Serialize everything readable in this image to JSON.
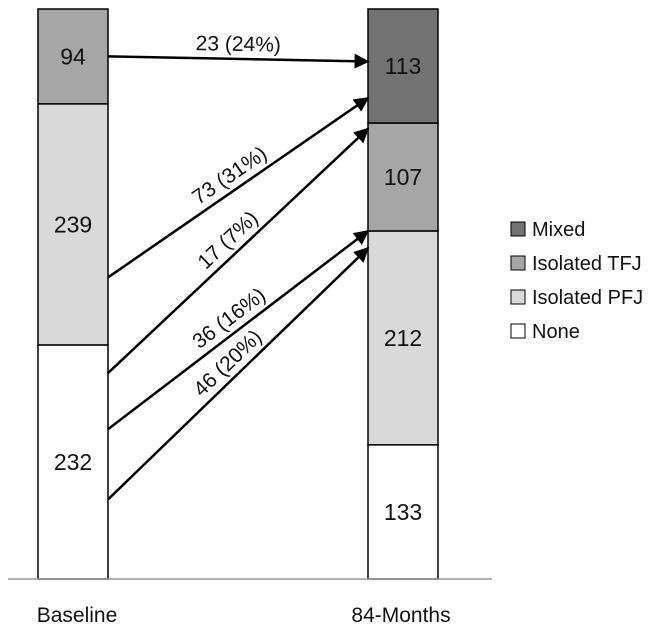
{
  "chart_data": {
    "type": "bar",
    "stacked": true,
    "categories": [
      "Baseline",
      "84-Months"
    ],
    "series": [
      {
        "name": "None",
        "values": [
          232,
          133
        ],
        "color": "#ffffff"
      },
      {
        "name": "Isolated PFJ",
        "values": [
          239,
          212
        ],
        "color": "#d9d9d9"
      },
      {
        "name": "Isolated TFJ",
        "values": [
          94,
          107
        ],
        "color": "#a6a6a6"
      },
      {
        "name": "Mixed",
        "values": [
          0,
          113
        ],
        "color": "#727272"
      }
    ],
    "legend_order": [
      "Mixed",
      "Isolated TFJ",
      "Isolated PFJ",
      "None"
    ],
    "legend_placement": "right",
    "flows": [
      {
        "from": "Isolated TFJ",
        "to": "Mixed",
        "label": "23 (24%)"
      },
      {
        "from": "Isolated PFJ",
        "to": "Mixed",
        "label": "73 (31%)"
      },
      {
        "from": "None",
        "to": "Mixed",
        "label": "17 (7%)"
      },
      {
        "from": "None",
        "to": "Isolated TFJ",
        "label": "36 (16%)"
      },
      {
        "from": "None",
        "to": "Isolated PFJ",
        "label": "46 (20%)"
      }
    ],
    "title": "",
    "xlabel": "",
    "ylabel": "",
    "grid": false
  }
}
